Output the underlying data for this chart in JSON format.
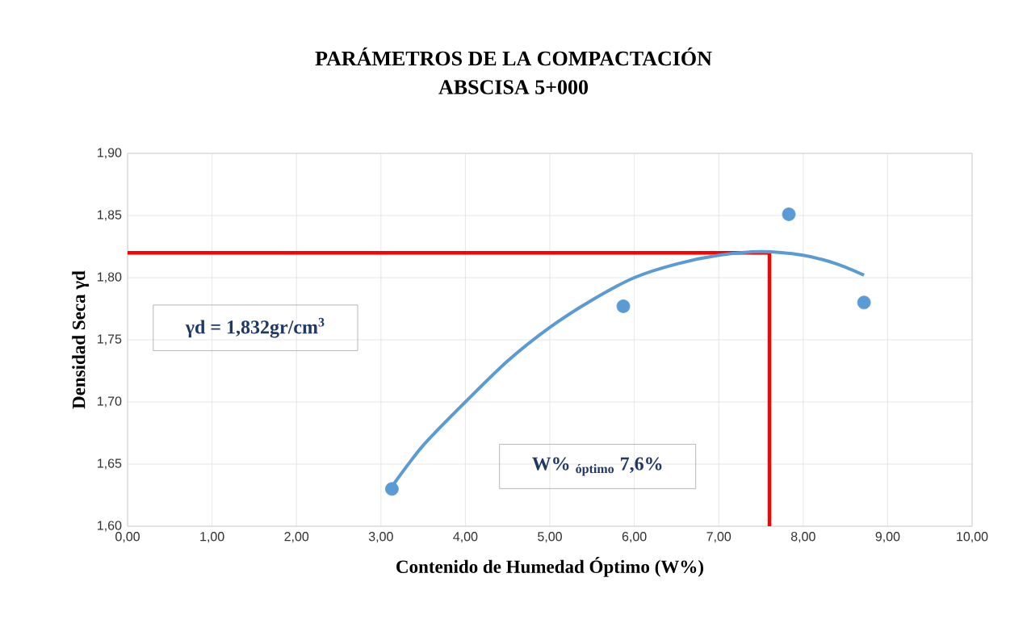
{
  "chart_data": {
    "type": "scatter",
    "title": "PARÁMETROS DE LA COMPACTACIÓN",
    "subtitle": "ABSCISA 5+000",
    "xlabel": "Contenido de Humedad Óptimo (W%)",
    "ylabel": "Densidad Seca γd",
    "series": [
      {
        "color": "#5b9bd5",
        "marker": "circle",
        "x": [
          3.13,
          5.87,
          7.83,
          8.72
        ],
        "values": [
          1.63,
          1.777,
          1.851,
          1.78
        ]
      },
      {
        "type": "line",
        "color": "#5b9bd5",
        "marker": "none",
        "x": [
          3.13,
          3.5,
          4.0,
          4.5,
          5.0,
          5.5,
          6.0,
          6.5,
          7.0,
          7.5,
          8.0,
          8.4,
          8.72
        ],
        "values": [
          1.632,
          1.665,
          1.7,
          1.733,
          1.76,
          1.782,
          1.8,
          1.811,
          1.818,
          1.821,
          1.818,
          1.811,
          1.802
        ]
      }
    ],
    "xlim": [
      0,
      10
    ],
    "ylim": [
      1.6,
      1.9
    ],
    "xticks": [
      {
        "value": 0,
        "label": "0,00"
      },
      {
        "value": 1,
        "label": "1,00"
      },
      {
        "value": 2,
        "label": "2,00"
      },
      {
        "value": 3,
        "label": "3,00"
      },
      {
        "value": 4,
        "label": "4,00"
      },
      {
        "value": 5,
        "label": "5,00"
      },
      {
        "value": 6,
        "label": "6,00"
      },
      {
        "value": 7,
        "label": "7,00"
      },
      {
        "value": 8,
        "label": "8,00"
      },
      {
        "value": 9,
        "label": "9,00"
      },
      {
        "value": 10,
        "label": "10,00"
      }
    ],
    "yticks": [
      {
        "value": 1.6,
        "label": "1,60"
      },
      {
        "value": 1.65,
        "label": "1,65"
      },
      {
        "value": 1.7,
        "label": "1,70"
      },
      {
        "value": 1.75,
        "label": "1,75"
      },
      {
        "value": 1.8,
        "label": "1,80"
      },
      {
        "value": 1.85,
        "label": "1,85"
      },
      {
        "value": 1.9,
        "label": "1,90"
      }
    ],
    "grid": true,
    "ref_lines": [
      {
        "axis": "y",
        "value": 1.82,
        "color": "#ff0000"
      },
      {
        "axis": "x",
        "value": 7.6,
        "color": "#ff0000"
      }
    ],
    "annotations": [
      "γd = 1,832gr/cm$^{3}$",
      "W% $_{óptimo}$ 7,6%"
    ]
  }
}
